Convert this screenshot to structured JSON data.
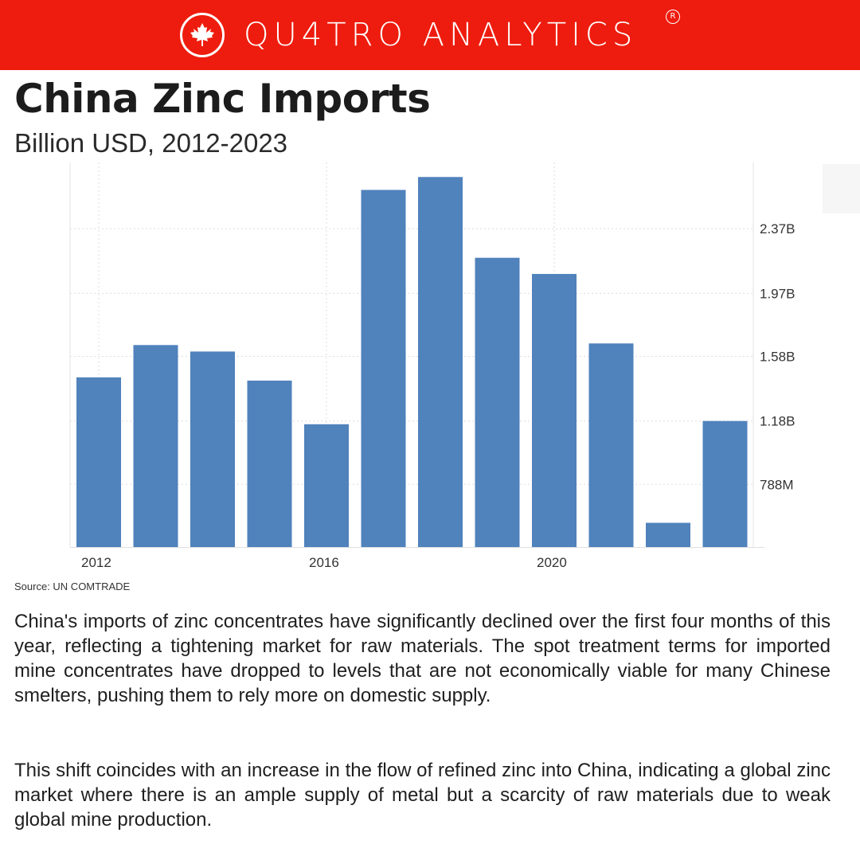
{
  "brand": {
    "name": "QU4TRO ANALYTICS",
    "registered_mark": "R",
    "color": "#ee1c0e",
    "logo_icon": "maple-leaf-icon"
  },
  "title": "China Zinc Imports",
  "subtitle": "Billion USD, 2012-2023",
  "source": "Source: UN COMTRADE",
  "paragraphs": [
    "China's imports of zinc concentrates have significantly declined over the first four months of this year, reflecting a tightening market for raw materials. The spot treatment terms for imported mine concentrates have dropped to levels that are not economically viable for many Chinese smelters, pushing them to rely more on domestic supply.",
    "This shift coincides with an increase in the flow of refined zinc into China, indicating a global zinc market where there is an ample supply of metal but a scarcity of raw materials due to weak global mine production."
  ],
  "chart_data": {
    "type": "bar",
    "categories": [
      "2012",
      "2013",
      "2014",
      "2015",
      "2016",
      "2017",
      "2018",
      "2019",
      "2020",
      "2021",
      "2022",
      "2023"
    ],
    "values": [
      1.45,
      1.65,
      1.61,
      1.43,
      1.16,
      2.61,
      2.69,
      2.19,
      2.09,
      1.66,
      0.55,
      1.18
    ],
    "x_tick_labels": [
      {
        "category": "2012",
        "label": "2012"
      },
      {
        "category": "2016",
        "label": "2016"
      },
      {
        "category": "2020",
        "label": "2020"
      }
    ],
    "y_ticks": [
      {
        "value": 0.788,
        "label": "788M"
      },
      {
        "value": 1.18,
        "label": "1.18B"
      },
      {
        "value": 1.58,
        "label": "1.58B"
      },
      {
        "value": 1.97,
        "label": "1.97B"
      },
      {
        "value": 2.37,
        "label": "2.37B"
      }
    ],
    "ylim": [
      0.4,
      2.78
    ],
    "y_axis_side": "right",
    "grid": true,
    "bar_color": "#5082bc",
    "title": "",
    "xlabel": "",
    "ylabel": ""
  }
}
